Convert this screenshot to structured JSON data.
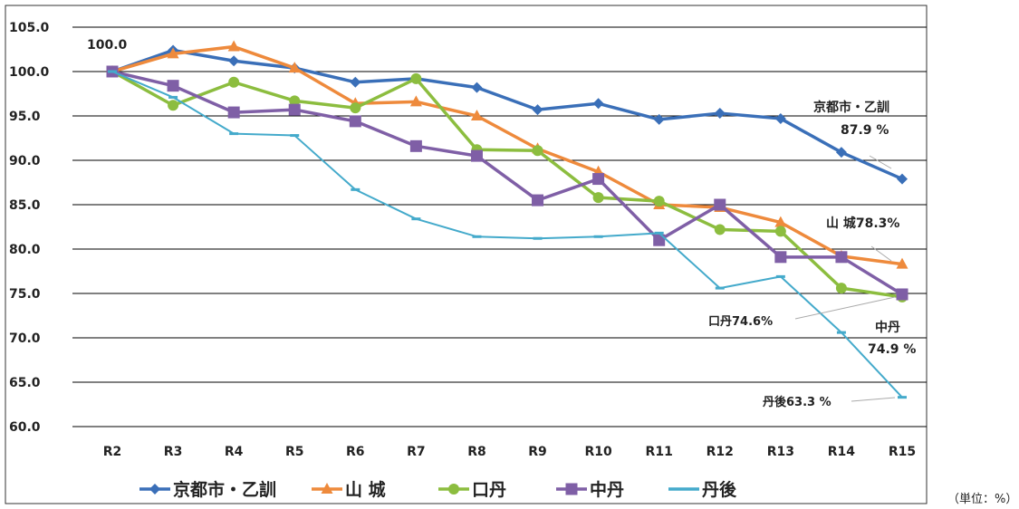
{
  "chart_data": {
    "type": "line",
    "title": "",
    "xlabel": "",
    "ylabel": "",
    "unit_note": "（単位：%）",
    "ylim": [
      60,
      105
    ],
    "yticks": [
      "105.0",
      "100.0",
      "95.0",
      "90.0",
      "85.0",
      "80.0",
      "75.0",
      "70.0",
      "65.0",
      "60.0"
    ],
    "categories": [
      "R2",
      "R3",
      "R4",
      "R5",
      "R6",
      "R7",
      "R8",
      "R9",
      "R10",
      "R11",
      "R12",
      "R13",
      "R14",
      "R15"
    ],
    "grid": true,
    "legend_position": "bottom",
    "series": [
      {
        "name": "京都市・乙訓",
        "color": "#3a6fb8",
        "marker": "diamond",
        "values": [
          100.0,
          102.4,
          101.2,
          100.4,
          98.8,
          99.2,
          98.2,
          95.7,
          96.4,
          94.6,
          95.3,
          94.7,
          90.9,
          87.9
        ]
      },
      {
        "name": "山 城",
        "color": "#ee8a3c",
        "marker": "triangle",
        "values": [
          100.0,
          102.0,
          102.8,
          100.4,
          96.4,
          96.6,
          95.0,
          91.3,
          88.7,
          85.0,
          84.7,
          83.0,
          79.2,
          78.3
        ]
      },
      {
        "name": "口丹",
        "color": "#8cbd3f",
        "marker": "circle",
        "values": [
          100.0,
          96.2,
          98.8,
          96.7,
          95.9,
          99.2,
          91.2,
          91.1,
          85.8,
          85.4,
          82.2,
          82.0,
          75.6,
          74.6
        ]
      },
      {
        "name": "中丹",
        "color": "#7f5fa6",
        "marker": "square",
        "values": [
          100.0,
          98.4,
          95.4,
          95.7,
          94.4,
          91.6,
          90.5,
          85.5,
          87.9,
          81.0,
          85.0,
          79.1,
          79.1,
          74.9
        ]
      },
      {
        "name": "丹後",
        "color": "#44aacb",
        "marker": "dash",
        "values": [
          100.0,
          97.1,
          93.0,
          92.8,
          86.7,
          83.4,
          81.4,
          81.2,
          81.4,
          81.8,
          75.6,
          76.9,
          70.6,
          63.3
        ]
      }
    ],
    "annotations": {
      "start": "100.0",
      "kyoto_name": "京都市・乙訓",
      "kyoto_value": "87.9 %",
      "yamashiro": "山 城78.3%",
      "kuchitan": "口丹74.6%",
      "chutan_name": "中丹",
      "chutan_value": "74.9 %",
      "tango": "丹後63.3 %"
    }
  }
}
